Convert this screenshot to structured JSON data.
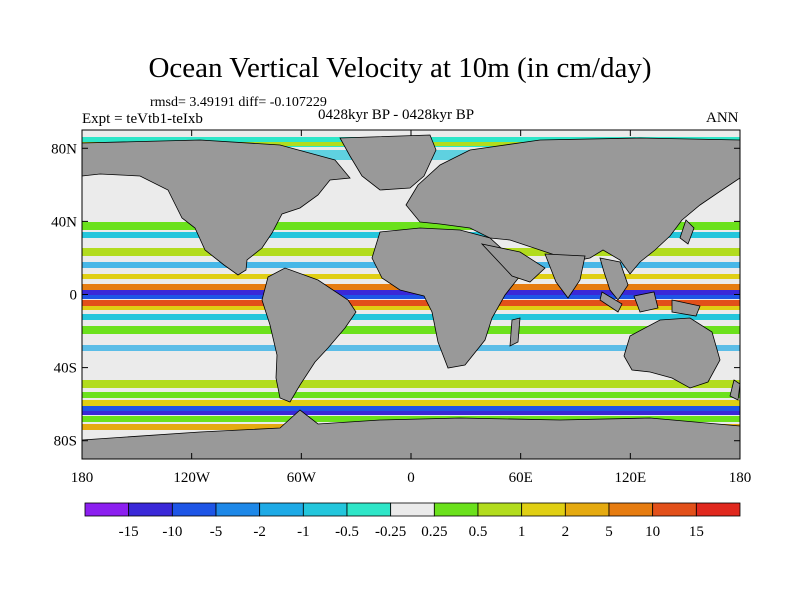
{
  "figure": {
    "title": "Ocean Vertical Velocity at 10m (in cm/day)",
    "stats": "rmsd= 3.49191 diff= -0.107229",
    "period": "0428kyr BP - 0428kyr BP",
    "experiment": "Expt = teVtb1-teIxb",
    "season": "ANN"
  },
  "axes": {
    "lat_ticks": [
      "80N",
      "40N",
      "0",
      "40S",
      "80S"
    ],
    "lat_values": [
      80,
      40,
      0,
      -40,
      -80
    ],
    "lon_ticks": [
      "180",
      "120W",
      "60W",
      "0",
      "60E",
      "120E",
      "180"
    ],
    "lon_values": [
      -180,
      -120,
      -60,
      0,
      60,
      120,
      180
    ],
    "lat_range": [
      -90,
      90
    ],
    "lon_range": [
      -180,
      180
    ]
  },
  "colorbar": {
    "labels": [
      "-15",
      "-10",
      "-5",
      "-2",
      "-1",
      "-0.5",
      "-0.25",
      "0.25",
      "0.5",
      "1",
      "2",
      "5",
      "10",
      "15"
    ],
    "colors": [
      "#8c1ff0",
      "#3a28d8",
      "#1e55e6",
      "#1e88e8",
      "#1eaae6",
      "#23c6dc",
      "#2ee6c8",
      "#ebebeb",
      "#6be11c",
      "#b2dc1e",
      "#e0cf13",
      "#e5aa10",
      "#e67c10",
      "#e2501a",
      "#e0281e"
    ]
  },
  "land_color": "#999999",
  "ocean_fill": "#ebebeb"
}
